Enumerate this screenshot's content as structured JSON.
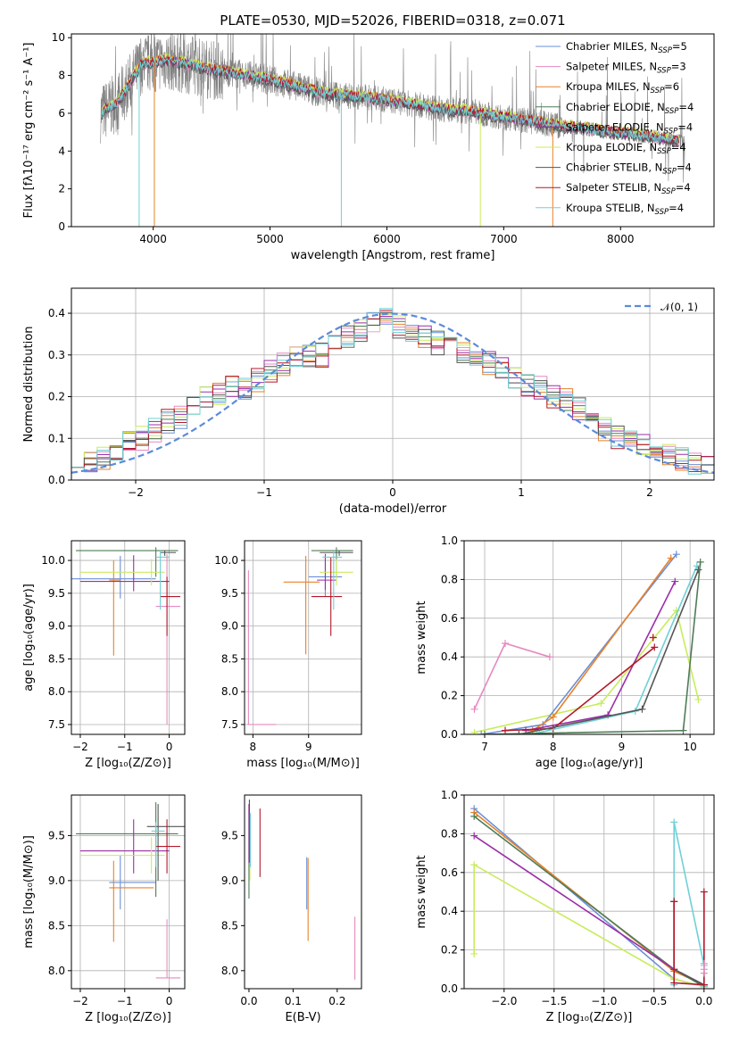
{
  "figure": {
    "title": "PLATE=0530, MJD=52026, FIBERID=0318, z=0.071"
  },
  "colors": {
    "Chabrier MILES": "#6a8fd8",
    "Salpeter MILES": "#e58ac0",
    "Kroupa MILES": "#e8822a",
    "Chabrier ELODIE": "#4f7c55",
    "Salpeter ELODIE": "#9a2fa8",
    "Kroupa ELODIE": "#c9ec5c",
    "Chabrier STELIB": "#555555",
    "Salpeter STELIB": "#b2182b",
    "Kroupa STELIB": "#6fd0d6",
    "data": "#808080",
    "normal": "#5b8bd9"
  },
  "chart_data": [
    {
      "id": "spectrum",
      "type": "line",
      "xlabel": "wavelength [Angstrom, rest frame]",
      "ylabel": "Flux [fλ10⁻¹⁷ erg cm⁻² s⁻¹ A⁻¹]",
      "xlim": [
        3300,
        8800
      ],
      "ylim": [
        0,
        10.2
      ],
      "xticks": [
        4000,
        5000,
        6000,
        7000,
        8000
      ],
      "yticks": [
        0,
        2,
        4,
        6,
        8,
        10
      ],
      "grid": false,
      "legend_position": "top-right",
      "continuum": {
        "x": [
          3550,
          3700,
          3900,
          4100,
          4300,
          4500,
          4700,
          4900,
          5100,
          5300,
          5500,
          5700,
          5900,
          6100,
          6300,
          6500,
          6700,
          6900,
          7100,
          7300,
          7500,
          7700,
          7900,
          8100,
          8300,
          8500
        ],
        "y": [
          6.0,
          6.6,
          8.6,
          8.8,
          8.6,
          8.3,
          8.1,
          7.9,
          7.6,
          7.3,
          7.0,
          6.9,
          6.8,
          6.6,
          6.4,
          6.2,
          6.1,
          5.9,
          5.7,
          5.5,
          5.3,
          5.2,
          5.0,
          4.9,
          4.7,
          4.5
        ]
      },
      "legend": [
        {
          "label": "Chabrier MILES, N",
          "nssp": "5"
        },
        {
          "label": "Salpeter MILES, N",
          "nssp": "3"
        },
        {
          "label": "Kroupa MILES, N",
          "nssp": "6"
        },
        {
          "label": "Chabrier ELODIE, N",
          "nssp": "4"
        },
        {
          "label": "Salpeter ELODIE, N",
          "nssp": "4"
        },
        {
          "label": "Kroupa ELODIE, N",
          "nssp": "4"
        },
        {
          "label": "Chabrier STELIB, N",
          "nssp": "4"
        },
        {
          "label": "Salpeter STELIB, N",
          "nssp": "4"
        },
        {
          "label": "Kroupa STELIB, N",
          "nssp": "4"
        }
      ],
      "legend_sub": "SSP"
    },
    {
      "id": "residuals",
      "type": "step",
      "xlabel": "(data-model)/error",
      "ylabel": "Normed distribution",
      "xlim": [
        -2.5,
        2.5
      ],
      "ylim": [
        0,
        0.46
      ],
      "xticks": [
        -2,
        -1,
        0,
        1,
        2
      ],
      "yticks": [
        0.0,
        0.1,
        0.2,
        0.3,
        0.4
      ],
      "grid": true,
      "bin_width": 0.1,
      "legend_position": "top-right",
      "normal_label": "𝒩(0, 1)",
      "centers": [
        -2.45,
        -2.35,
        -2.25,
        -2.15,
        -2.05,
        -1.95,
        -1.85,
        -1.75,
        -1.65,
        -1.55,
        -1.45,
        -1.35,
        -1.25,
        -1.15,
        -1.05,
        -0.95,
        -0.85,
        -0.75,
        -0.65,
        -0.55,
        -0.45,
        -0.35,
        -0.25,
        -0.15,
        -0.05,
        0.05,
        0.15,
        0.25,
        0.35,
        0.45,
        0.55,
        0.65,
        0.75,
        0.85,
        0.95,
        1.05,
        1.15,
        1.25,
        1.35,
        1.45,
        1.55,
        1.65,
        1.75,
        1.85,
        1.95,
        2.05,
        2.15,
        2.25,
        2.35,
        2.45
      ],
      "base": [
        0.06,
        0.045,
        0.055,
        0.07,
        0.09,
        0.1,
        0.12,
        0.14,
        0.15,
        0.17,
        0.2,
        0.21,
        0.22,
        0.22,
        0.24,
        0.26,
        0.28,
        0.29,
        0.3,
        0.3,
        0.32,
        0.34,
        0.36,
        0.38,
        0.39,
        0.37,
        0.35,
        0.34,
        0.33,
        0.32,
        0.31,
        0.3,
        0.28,
        0.27,
        0.25,
        0.23,
        0.22,
        0.2,
        0.19,
        0.17,
        0.15,
        0.12,
        0.1,
        0.09,
        0.08,
        0.07,
        0.06,
        0.05,
        0.04,
        0.035
      ]
    },
    {
      "id": "age_vs_Z",
      "type": "errorbar",
      "xlabel": "Z [log₁₀(Z/Z⊙)]",
      "ylabel": "age  [log₁₀(age/yr)]",
      "xlim": [
        -2.2,
        0.35
      ],
      "ylim": [
        7.35,
        10.3
      ],
      "xticks": [
        -2,
        -1,
        0
      ],
      "yticks": [
        7.5,
        8.0,
        8.5,
        9.0,
        9.5,
        10.0
      ],
      "grid": true,
      "points": [
        {
          "series": "Chabrier MILES",
          "x": -1.1,
          "xerr": [
            1.2,
            0.8
          ],
          "y": 9.72,
          "yerr": [
            0.3,
            0.35
          ]
        },
        {
          "series": "Salpeter MILES",
          "x": -0.05,
          "xerr": [
            0.25,
            0.3
          ],
          "y": 9.3,
          "yerr": [
            1.8,
            0.8
          ]
        },
        {
          "series": "Kroupa MILES",
          "x": -1.25,
          "xerr": [
            0.1,
            0.15
          ],
          "y": 9.7,
          "yerr": [
            1.15,
            0.3
          ]
        },
        {
          "series": "Chabrier ELODIE",
          "x": -0.3,
          "xerr": [
            1.8,
            0.5
          ],
          "y": 10.15,
          "yerr": [
            0.4,
            0.05
          ]
        },
        {
          "series": "Salpeter ELODIE",
          "x": -0.8,
          "xerr": [
            1.2,
            0.8
          ],
          "y": 9.68,
          "yerr": [
            0.15,
            0.4
          ]
        },
        {
          "series": "Kroupa ELODIE",
          "x": -0.4,
          "xerr": [
            1.6,
            0.3
          ],
          "y": 9.82,
          "yerr": [
            0.2,
            0.2
          ]
        },
        {
          "series": "Chabrier STELIB",
          "x": -0.1,
          "xerr": [
            0.1,
            0.25
          ],
          "y": 10.12,
          "yerr": [
            0.05,
            0.03
          ]
        },
        {
          "series": "Salpeter STELIB",
          "x": -0.05,
          "xerr": [
            0.15,
            0.3
          ],
          "y": 9.45,
          "yerr": [
            0.6,
            0.3
          ]
        },
        {
          "series": "Kroupa STELIB",
          "x": -0.2,
          "xerr": [
            0.1,
            0.2
          ],
          "y": 10.05,
          "yerr": [
            0.8,
            0.1
          ]
        }
      ]
    },
    {
      "id": "age_vs_mass",
      "type": "errorbar",
      "xlabel": "mass [log₁₀(M/M⊙)]",
      "ylabel": "",
      "xlim": [
        7.85,
        9.95
      ],
      "ylim": [
        7.35,
        10.3
      ],
      "xticks": [
        8,
        9
      ],
      "yticks": [
        7.5,
        8.0,
        8.5,
        9.0,
        9.5,
        10.0
      ],
      "grid": true,
      "points": [
        {
          "series": "Chabrier MILES",
          "x": 9.3,
          "xerr": [
            0.3,
            0.3
          ],
          "y": 9.75,
          "yerr": [
            0.3,
            0.3
          ]
        },
        {
          "series": "Salpeter MILES",
          "x": 7.92,
          "xerr": [
            0.02,
            0.5
          ],
          "y": 7.5,
          "yerr": [
            0.0,
            2.35
          ]
        },
        {
          "series": "Kroupa MILES",
          "x": 8.95,
          "xerr": [
            0.4,
            0.25
          ],
          "y": 9.67,
          "yerr": [
            1.1,
            0.4
          ]
        },
        {
          "series": "Chabrier ELODIE",
          "x": 9.5,
          "xerr": [
            0.45,
            0.3
          ],
          "y": 10.15,
          "yerr": [
            0.4,
            0.05
          ]
        },
        {
          "series": "Salpeter ELODIE",
          "x": 9.3,
          "xerr": [
            0.15,
            0.2
          ],
          "y": 9.7,
          "yerr": [
            0.15,
            0.4
          ]
        },
        {
          "series": "Kroupa ELODIE",
          "x": 9.5,
          "xerr": [
            0.3,
            0.3
          ],
          "y": 9.82,
          "yerr": [
            0.2,
            0.2
          ]
        },
        {
          "series": "Chabrier STELIB",
          "x": 9.55,
          "xerr": [
            0.35,
            0.25
          ],
          "y": 10.12,
          "yerr": [
            0.05,
            0.03
          ]
        },
        {
          "series": "Salpeter STELIB",
          "x": 9.4,
          "xerr": [
            0.35,
            0.2
          ],
          "y": 9.45,
          "yerr": [
            0.6,
            0.6
          ]
        },
        {
          "series": "Kroupa STELIB",
          "x": 9.45,
          "xerr": [
            0.2,
            0.15
          ],
          "y": 10.05,
          "yerr": [
            0.8,
            0.1
          ]
        }
      ]
    },
    {
      "id": "massweight_vs_age",
      "type": "line",
      "xlabel": "age  [log₁₀(age/yr)]",
      "ylabel": "mass weight",
      "xlim": [
        6.7,
        10.35
      ],
      "ylim": [
        0.0,
        1.0
      ],
      "xticks": [
        7,
        8,
        9,
        10
      ],
      "yticks": [
        0.0,
        0.2,
        0.4,
        0.6,
        0.8,
        1.0
      ],
      "grid": true,
      "series": [
        {
          "name": "Salpeter MILES",
          "x": [
            6.85,
            7.3,
            7.95
          ],
          "y": [
            0.13,
            0.47,
            0.4
          ]
        },
        {
          "name": "Kroupa ELODIE",
          "x": [
            6.85,
            8.7,
            9.8,
            10.12
          ],
          "y": [
            0.01,
            0.16,
            0.64,
            0.18
          ]
        },
        {
          "name": "Chabrier MILES",
          "x": [
            6.95,
            7.85,
            9.8
          ],
          "y": [
            0.0,
            0.05,
            0.93
          ]
        },
        {
          "name": "Kroupa MILES",
          "x": [
            7.7,
            8.0,
            9.72
          ],
          "y": [
            0.02,
            0.09,
            0.91
          ]
        },
        {
          "name": "Salpeter ELODIE",
          "x": [
            7.6,
            8.8,
            9.78
          ],
          "y": [
            0.02,
            0.1,
            0.79
          ]
        },
        {
          "name": "Salpeter STELIB",
          "x": [
            7.3,
            8.0,
            9.48
          ],
          "y": [
            0.02,
            0.03,
            0.45
          ]
        },
        {
          "name": "Kroupa STELIB",
          "x": [
            7.8,
            9.2,
            10.1
          ],
          "y": [
            0.01,
            0.12,
            0.87
          ]
        },
        {
          "name": "Chabrier STELIB",
          "x": [
            7.5,
            9.3,
            10.12
          ],
          "y": [
            0.0,
            0.13,
            0.85
          ]
        },
        {
          "name": "Chabrier ELODIE",
          "x": [
            7.0,
            9.9,
            10.15
          ],
          "y": [
            0.0,
            0.02,
            0.89
          ]
        }
      ],
      "extra_points": [
        {
          "series": "Kroupa MILES",
          "x": 9.46,
          "y": 0.5
        },
        {
          "series": "Salpeter STELIB",
          "x": 9.46,
          "y": 0.5
        }
      ]
    },
    {
      "id": "mass_vs_Z",
      "type": "errorbar",
      "xlabel": "Z [log₁₀(Z/Z⊙)]",
      "ylabel": "mass [log₁₀(M/M⊙)]",
      "xlim": [
        -2.2,
        0.35
      ],
      "ylim": [
        7.8,
        9.95
      ],
      "xticks": [
        -2,
        -1,
        0
      ],
      "yticks": [
        8.0,
        8.5,
        9.0,
        9.5
      ],
      "grid": true,
      "points": [
        {
          "series": "Chabrier MILES",
          "x": -1.1,
          "xerr": [
            0.25,
            0.8
          ],
          "y": 8.98,
          "yerr": [
            0.3,
            0.3
          ]
        },
        {
          "series": "Salpeter MILES",
          "x": -0.05,
          "xerr": [
            0.25,
            0.3
          ],
          "y": 7.92,
          "yerr": [
            0.0,
            0.65
          ]
        },
        {
          "series": "Kroupa MILES",
          "x": -1.25,
          "xerr": [
            0.1,
            0.9
          ],
          "y": 8.92,
          "yerr": [
            0.6,
            0.3
          ]
        },
        {
          "series": "Chabrier ELODIE",
          "x": -0.3,
          "xerr": [
            1.8,
            0.5
          ],
          "y": 9.52,
          "yerr": [
            0.7,
            0.35
          ]
        },
        {
          "series": "Salpeter ELODIE",
          "x": -0.8,
          "xerr": [
            1.2,
            0.8
          ],
          "y": 9.33,
          "yerr": [
            0.25,
            0.35
          ]
        },
        {
          "series": "Kroupa ELODIE",
          "x": -0.4,
          "xerr": [
            1.6,
            0.3
          ],
          "y": 9.28,
          "yerr": [
            0.2,
            0.2
          ]
        },
        {
          "series": "Chabrier STELIB",
          "x": -0.25,
          "xerr": [
            0.25,
            0.6
          ],
          "y": 9.6,
          "yerr": [
            0.6,
            0.25
          ]
        },
        {
          "series": "Salpeter STELIB",
          "x": -0.05,
          "xerr": [
            0.25,
            0.3
          ],
          "y": 9.38,
          "yerr": [
            0.3,
            0.3
          ]
        },
        {
          "series": "Kroupa STELIB",
          "x": -0.3,
          "xerr": [
            0.1,
            0.2
          ],
          "y": 9.55,
          "yerr": [
            0.4,
            0.1
          ]
        }
      ]
    },
    {
      "id": "mass_vs_EBV",
      "type": "errorbar",
      "xlabel": "E(B-V)",
      "ylabel": "",
      "xlim": [
        -0.01,
        0.255
      ],
      "ylim": [
        7.8,
        9.95
      ],
      "xticks": [
        0.0,
        0.1,
        0.2
      ],
      "yticks": [
        8.0,
        8.5,
        9.0,
        9.5
      ],
      "grid": false,
      "points": [
        {
          "series": "Chabrier MILES",
          "x": 0.131,
          "xerr": [
            0,
            0
          ],
          "y": 8.98,
          "yerr": [
            0.3,
            0.28
          ]
        },
        {
          "series": "Salpeter MILES",
          "x": 0.24,
          "xerr": [
            0,
            0
          ],
          "y": 8.25,
          "yerr": [
            0.35,
            0.35
          ]
        },
        {
          "series": "Kroupa MILES",
          "x": 0.134,
          "xerr": [
            0,
            0
          ],
          "y": 8.8,
          "yerr": [
            0.47,
            0.45
          ]
        },
        {
          "series": "Chabrier ELODIE",
          "x": 0.0,
          "xerr": [
            0,
            0
          ],
          "y": 9.4,
          "yerr": [
            0.6,
            0.45
          ]
        },
        {
          "series": "Salpeter ELODIE",
          "x": 0.0,
          "xerr": [
            0,
            0
          ],
          "y": 9.5,
          "yerr": [
            0.3,
            0.35
          ]
        },
        {
          "series": "Kroupa ELODIE",
          "x": 0.002,
          "xerr": [
            0,
            0
          ],
          "y": 9.3,
          "yerr": [
            0.3,
            0.3
          ]
        },
        {
          "series": "Chabrier STELIB",
          "x": 0.001,
          "xerr": [
            0,
            0
          ],
          "y": 9.6,
          "yerr": [
            0.4,
            0.3
          ]
        },
        {
          "series": "Salpeter STELIB",
          "x": 0.025,
          "xerr": [
            0,
            0
          ],
          "y": 9.42,
          "yerr": [
            0.38,
            0.38
          ]
        },
        {
          "series": "Kroupa STELIB",
          "x": 0.003,
          "xerr": [
            0,
            0
          ],
          "y": 9.45,
          "yerr": [
            0.3,
            0.3
          ]
        }
      ]
    },
    {
      "id": "massweight_vs_Z",
      "type": "line",
      "xlabel": "Z [log₁₀(Z/Z⊙)]",
      "ylabel": "mass weight",
      "xlim": [
        -2.4,
        0.1
      ],
      "ylim": [
        0.0,
        1.0
      ],
      "xticks": [
        -2.0,
        -1.5,
        -1.0,
        -0.5,
        0.0
      ],
      "yticks": [
        0.0,
        0.2,
        0.4,
        0.6,
        0.8,
        1.0
      ],
      "grid": true,
      "series": [
        {
          "name": "Chabrier MILES",
          "x": [
            -2.3,
            -0.3,
            0.0
          ],
          "y": [
            0.93,
            0.05,
            0.01
          ]
        },
        {
          "name": "Kroupa MILES",
          "x": [
            -2.3,
            -0.3,
            0.0
          ],
          "y": [
            0.91,
            0.09,
            0.02
          ]
        },
        {
          "name": "Chabrier ELODIE",
          "x": [
            -2.3,
            -0.3,
            0.0
          ],
          "y": [
            0.89,
            0.1,
            0.01
          ]
        },
        {
          "name": "Salpeter ELODIE",
          "x": [
            -2.3,
            -0.3,
            0.0
          ],
          "y": [
            0.79,
            0.1,
            0.02
          ]
        },
        {
          "name": "Kroupa ELODIE",
          "x": [
            -2.3,
            -2.3,
            -0.3,
            0.0
          ],
          "y": [
            0.18,
            0.64,
            0.05,
            0.01
          ]
        },
        {
          "name": "Kroupa STELIB",
          "x": [
            -0.3,
            -0.3,
            0.0,
            0.0
          ],
          "y": [
            0.02,
            0.86,
            0.12,
            0.01
          ]
        },
        {
          "name": "Chabrier STELIB",
          "x": [
            -0.3,
            -0.3,
            0.0
          ],
          "y": [
            0.45,
            0.1,
            0.02
          ]
        },
        {
          "name": "Salpeter STELIB",
          "x": [
            -0.3,
            -0.3,
            0.0,
            0.0
          ],
          "y": [
            0.45,
            0.03,
            0.02,
            0.5
          ]
        },
        {
          "name": "Salpeter MILES",
          "x": [
            0.0,
            0.0,
            0.0
          ],
          "y": [
            0.13,
            0.1,
            0.08
          ]
        }
      ]
    }
  ]
}
